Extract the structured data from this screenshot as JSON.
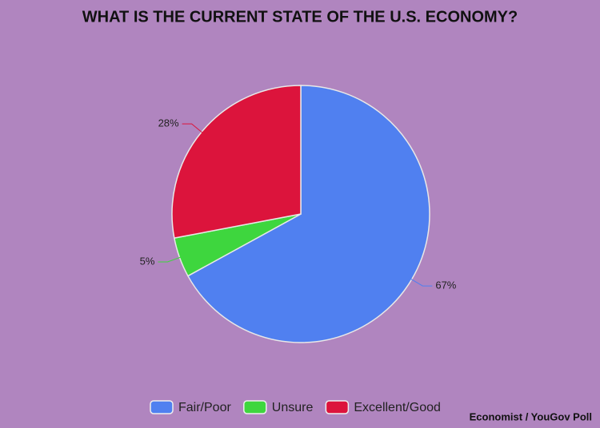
{
  "chart_data": {
    "type": "pie",
    "title": "WHAT IS THE CURRENT STATE OF THE U.S. ECONOMY?",
    "categories": [
      "Fair/Poor",
      "Unsure",
      "Excellent/Good"
    ],
    "values": [
      67,
      5,
      28
    ],
    "value_labels": [
      "67%",
      "5%",
      "28%"
    ],
    "colors": [
      "#5080f0",
      "#3ed63e",
      "#dc143c"
    ],
    "legend": "bottom",
    "source": "Economist / YouGov Poll"
  }
}
